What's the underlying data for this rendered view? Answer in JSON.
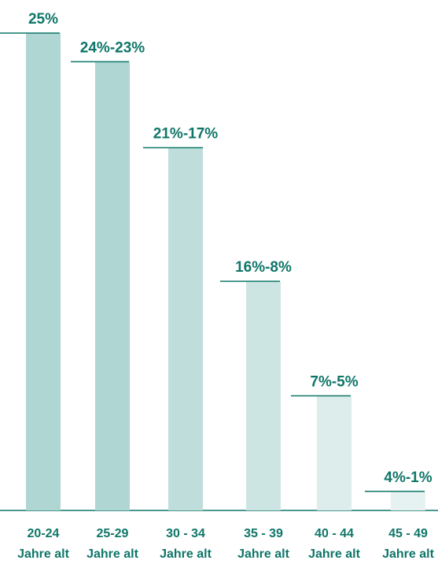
{
  "chart_data": {
    "type": "bar",
    "title": "",
    "xlabel": "",
    "ylabel": "",
    "ylim": [
      0,
      25
    ],
    "grid": false,
    "legend": "none",
    "categories": [
      {
        "line1": "20-24",
        "line2": "Jahre alt"
      },
      {
        "line1": "25-29",
        "line2": "Jahre alt"
      },
      {
        "line1": "30 - 34",
        "line2": "Jahre alt"
      },
      {
        "line1": "35 - 39",
        "line2": "Jahre alt"
      },
      {
        "line1": "40 - 44",
        "line2": "Jahre alt"
      },
      {
        "line1": "45 - 49",
        "line2": "Jahre alt"
      }
    ],
    "values": [
      25,
      23.5,
      19,
      12,
      6,
      1
    ],
    "value_labels": [
      "25%",
      "24%-23%",
      "21%-17%",
      "16%-8%",
      "7%-5%",
      "4%-1%"
    ],
    "colors": {
      "bars": [
        "#b0d6d3",
        "#b0d6d3",
        "#bfdedb",
        "#cde5e2",
        "#dcedeb",
        "#e6f2f1"
      ],
      "accent": "#0e7668",
      "baseline": "#0e7668"
    }
  }
}
